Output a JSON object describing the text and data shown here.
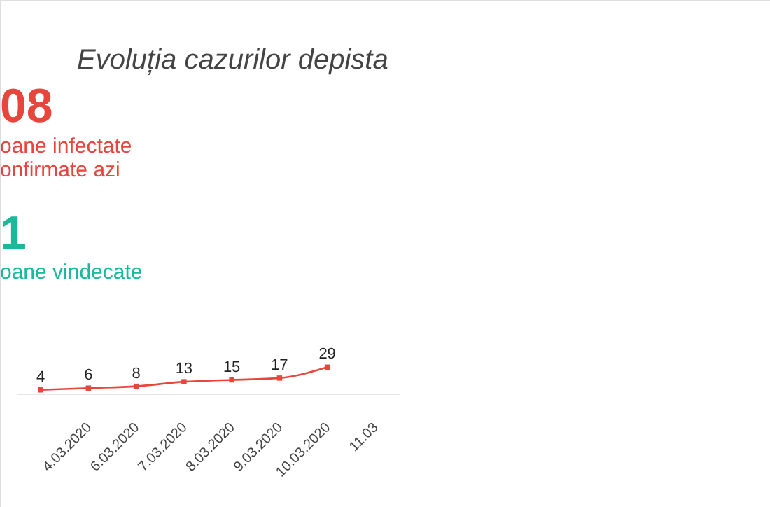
{
  "chart_data": {
    "type": "line",
    "title": "Evoluția cazurilor depista",
    "annotations": [
      "08",
      "oane infectate",
      "onfirmate azi",
      "1",
      "oane vindecate"
    ],
    "categories": [
      null,
      "4.03.2020",
      "6.03.2020",
      "7.03.2020",
      "8.03.2020",
      "9.03.2020",
      "10.03.2020",
      "11.03"
    ],
    "series": [
      {
        "color": "#e8453c",
        "values": [
          4,
          6,
          8,
          13,
          15,
          17,
          29,
          null
        ],
        "value_labels": [
          "4",
          "6",
          "8",
          "13",
          "15",
          "17",
          "29",
          null
        ]
      }
    ],
    "tick_labels": "x",
    "marker": "square",
    "line_style": "solid"
  }
}
